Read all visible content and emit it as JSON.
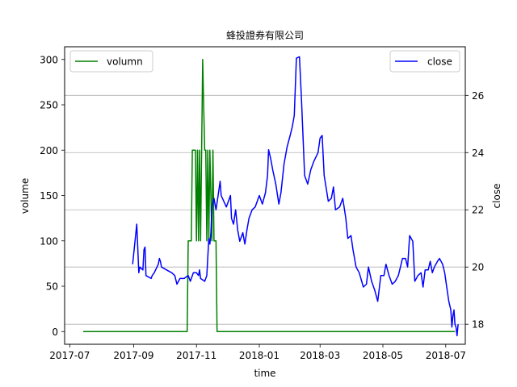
{
  "chart_data": {
    "type": "line",
    "title": "蜂投證券有限公司",
    "xlabel": "time",
    "ylabel_left": "volume",
    "ylabel_right": "close",
    "x_ticks": [
      "2017-07",
      "2017-09",
      "2017-11",
      "2018-01",
      "2018-03",
      "2018-05",
      "2018-07"
    ],
    "xlim": [
      "2017-06-26",
      "2018-07-20"
    ],
    "ylim_left": [
      -14,
      314
    ],
    "yticks_left": [
      0,
      50,
      100,
      150,
      200,
      250,
      300
    ],
    "ylim_right": [
      17.3,
      27.7
    ],
    "yticks_right": [
      18,
      20,
      22,
      24,
      26
    ],
    "grid": "right-axis horizontal",
    "legend": [
      {
        "label": "volumn",
        "color": "#008000",
        "placement": "top-left"
      },
      {
        "label": "close",
        "color": "#0000ff",
        "placement": "top-right"
      }
    ],
    "series": [
      {
        "name": "volumn",
        "axis": "left",
        "color": "#008000",
        "points": [
          [
            "2017-07-14",
            0
          ],
          [
            "2017-10-23",
            0
          ],
          [
            "2017-10-24",
            100
          ],
          [
            "2017-10-27",
            100
          ],
          [
            "2017-10-28",
            200
          ],
          [
            "2017-10-31",
            200
          ],
          [
            "2017-11-01",
            100
          ],
          [
            "2017-11-02",
            200
          ],
          [
            "2017-11-03",
            100
          ],
          [
            "2017-11-04",
            200
          ],
          [
            "2017-11-05",
            100
          ],
          [
            "2017-11-06",
            200
          ],
          [
            "2017-11-07",
            300
          ],
          [
            "2017-11-08",
            250
          ],
          [
            "2017-11-09",
            200
          ],
          [
            "2017-11-10",
            200
          ],
          [
            "2017-11-11",
            100
          ],
          [
            "2017-11-12",
            200
          ],
          [
            "2017-11-13",
            100
          ],
          [
            "2017-11-14",
            200
          ],
          [
            "2017-11-16",
            100
          ],
          [
            "2017-11-17",
            200
          ],
          [
            "2017-11-18",
            100
          ],
          [
            "2017-11-20",
            100
          ],
          [
            "2017-11-21",
            0
          ],
          [
            "2018-07-10",
            0
          ]
        ]
      },
      {
        "name": "close",
        "axis": "right",
        "color": "#0000ff",
        "points": [
          [
            "2017-08-31",
            20.1
          ],
          [
            "2017-09-04",
            21.5
          ],
          [
            "2017-09-05",
            20.7
          ],
          [
            "2017-09-06",
            19.8
          ],
          [
            "2017-09-07",
            20.0
          ],
          [
            "2017-09-10",
            19.9
          ],
          [
            "2017-09-11",
            20.6
          ],
          [
            "2017-09-12",
            20.7
          ],
          [
            "2017-09-13",
            19.7
          ],
          [
            "2017-09-18",
            19.6
          ],
          [
            "2017-09-19",
            19.7
          ],
          [
            "2017-09-21",
            19.8
          ],
          [
            "2017-09-25",
            20.1
          ],
          [
            "2017-09-26",
            20.3
          ],
          [
            "2017-09-27",
            20.2
          ],
          [
            "2017-09-28",
            20.0
          ],
          [
            "2017-10-03",
            19.9
          ],
          [
            "2017-10-08",
            19.8
          ],
          [
            "2017-10-11",
            19.7
          ],
          [
            "2017-10-13",
            19.4
          ],
          [
            "2017-10-16",
            19.6
          ],
          [
            "2017-10-20",
            19.6
          ],
          [
            "2017-10-24",
            19.7
          ],
          [
            "2017-10-26",
            19.5
          ],
          [
            "2017-10-29",
            19.8
          ],
          [
            "2017-11-01",
            19.8
          ],
          [
            "2017-11-03",
            19.7
          ],
          [
            "2017-11-04",
            19.9
          ],
          [
            "2017-11-05",
            19.6
          ],
          [
            "2017-11-09",
            19.5
          ],
          [
            "2017-11-11",
            19.7
          ],
          [
            "2017-11-13",
            21.0
          ],
          [
            "2017-11-14",
            20.8
          ],
          [
            "2017-11-15",
            21.2
          ],
          [
            "2017-11-16",
            22.1
          ],
          [
            "2017-11-18",
            22.4
          ],
          [
            "2017-11-20",
            22.0
          ],
          [
            "2017-11-22",
            22.5
          ],
          [
            "2017-11-24",
            23.0
          ],
          [
            "2017-11-25",
            22.5
          ],
          [
            "2017-11-30",
            22.1
          ],
          [
            "2017-12-04",
            22.5
          ],
          [
            "2017-12-05",
            21.7
          ],
          [
            "2017-12-07",
            21.5
          ],
          [
            "2017-12-09",
            22.0
          ],
          [
            "2017-12-11",
            21.3
          ],
          [
            "2017-12-13",
            20.9
          ],
          [
            "2017-12-16",
            21.2
          ],
          [
            "2017-12-18",
            20.8
          ],
          [
            "2017-12-20",
            21.3
          ],
          [
            "2017-12-22",
            21.7
          ],
          [
            "2017-12-25",
            22.0
          ],
          [
            "2017-12-28",
            22.1
          ],
          [
            "2018-01-01",
            22.5
          ],
          [
            "2018-01-04",
            22.2
          ],
          [
            "2018-01-07",
            22.6
          ],
          [
            "2018-01-09",
            23.2
          ],
          [
            "2018-01-10",
            24.1
          ],
          [
            "2018-01-12",
            23.8
          ],
          [
            "2018-01-14",
            23.4
          ],
          [
            "2018-01-17",
            22.9
          ],
          [
            "2018-01-20",
            22.2
          ],
          [
            "2018-01-22",
            22.6
          ],
          [
            "2018-01-25",
            23.6
          ],
          [
            "2018-01-28",
            24.2
          ],
          [
            "2018-01-31",
            24.6
          ],
          [
            "2018-02-02",
            24.9
          ],
          [
            "2018-02-04",
            25.3
          ],
          [
            "2018-02-06",
            27.3
          ],
          [
            "2018-02-09",
            27.35
          ],
          [
            "2018-02-11",
            25.8
          ],
          [
            "2018-02-14",
            23.2
          ],
          [
            "2018-02-17",
            22.9
          ],
          [
            "2018-02-20",
            23.4
          ],
          [
            "2018-02-23",
            23.7
          ],
          [
            "2018-02-27",
            24.0
          ],
          [
            "2018-03-01",
            24.5
          ],
          [
            "2018-03-03",
            24.6
          ],
          [
            "2018-03-05",
            23.2
          ],
          [
            "2018-03-09",
            22.3
          ],
          [
            "2018-03-12",
            22.4
          ],
          [
            "2018-03-14",
            22.8
          ],
          [
            "2018-03-16",
            22.0
          ],
          [
            "2018-03-20",
            22.1
          ],
          [
            "2018-03-23",
            22.4
          ],
          [
            "2018-03-26",
            21.7
          ],
          [
            "2018-03-28",
            21.0
          ],
          [
            "2018-03-31",
            21.1
          ],
          [
            "2018-04-02",
            20.6
          ],
          [
            "2018-04-05",
            20.0
          ],
          [
            "2018-04-08",
            19.8
          ],
          [
            "2018-04-12",
            19.3
          ],
          [
            "2018-04-15",
            19.4
          ],
          [
            "2018-04-17",
            20.0
          ],
          [
            "2018-04-20",
            19.5
          ],
          [
            "2018-04-23",
            19.2
          ],
          [
            "2018-04-26",
            18.8
          ],
          [
            "2018-04-29",
            19.7
          ],
          [
            "2018-05-02",
            19.7
          ],
          [
            "2018-05-04",
            20.1
          ],
          [
            "2018-05-07",
            19.7
          ],
          [
            "2018-05-10",
            19.4
          ],
          [
            "2018-05-13",
            19.5
          ],
          [
            "2018-05-16",
            19.7
          ],
          [
            "2018-05-18",
            20.0
          ],
          [
            "2018-05-20",
            20.3
          ],
          [
            "2018-05-23",
            20.3
          ],
          [
            "2018-05-25",
            20.0
          ],
          [
            "2018-05-27",
            21.1
          ],
          [
            "2018-05-30",
            20.9
          ],
          [
            "2018-06-01",
            19.5
          ],
          [
            "2018-06-04",
            19.7
          ],
          [
            "2018-06-07",
            19.8
          ],
          [
            "2018-06-09",
            19.3
          ],
          [
            "2018-06-11",
            19.9
          ],
          [
            "2018-06-14",
            19.9
          ],
          [
            "2018-06-16",
            20.2
          ],
          [
            "2018-06-18",
            19.8
          ],
          [
            "2018-06-20",
            20.0
          ],
          [
            "2018-06-23",
            20.2
          ],
          [
            "2018-06-25",
            20.3
          ],
          [
            "2018-06-28",
            20.1
          ],
          [
            "2018-06-30",
            19.8
          ],
          [
            "2018-07-02",
            19.3
          ],
          [
            "2018-07-04",
            18.8
          ],
          [
            "2018-07-06",
            18.5
          ],
          [
            "2018-07-07",
            17.9
          ],
          [
            "2018-07-08",
            18.3
          ],
          [
            "2018-07-09",
            18.5
          ],
          [
            "2018-07-10",
            18.0
          ],
          [
            "2018-07-11",
            17.9
          ],
          [
            "2018-07-12",
            17.6
          ],
          [
            "2018-07-13",
            18.0
          ]
        ]
      }
    ]
  }
}
